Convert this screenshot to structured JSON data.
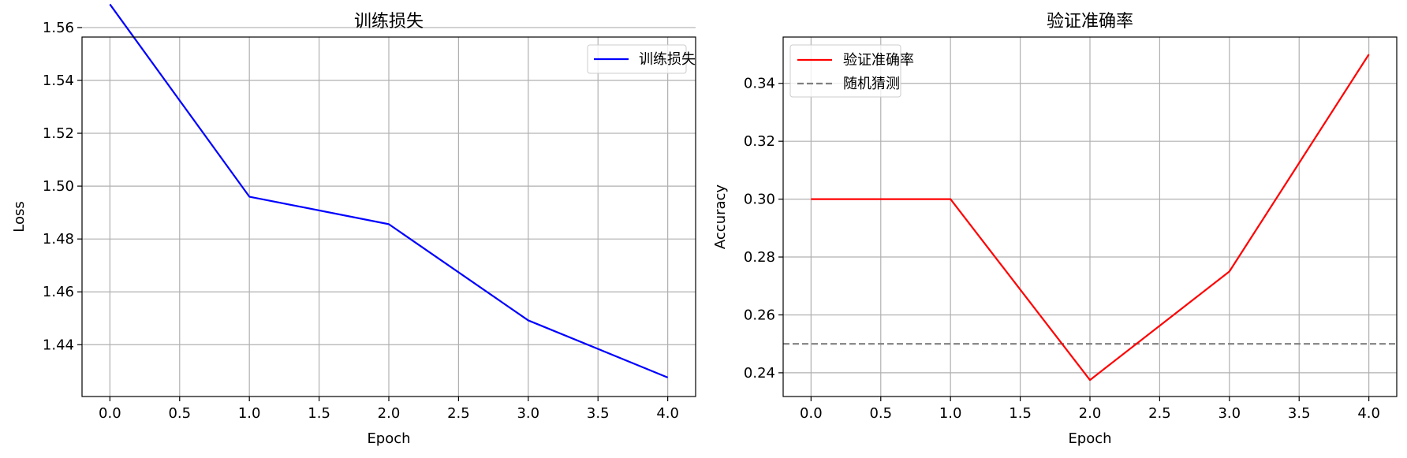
{
  "chart_data": [
    {
      "type": "line",
      "title": "训练损失",
      "xlabel": "Epoch",
      "ylabel": "Loss",
      "x": [
        0,
        1,
        2,
        3,
        4
      ],
      "xlim": [
        -0.2,
        4.2
      ],
      "ylim": [
        1.4204,
        1.5564
      ],
      "xticks": [
        0.0,
        0.5,
        1.0,
        1.5,
        2.0,
        2.5,
        3.0,
        3.5,
        4.0
      ],
      "xtick_labels": [
        "0.0",
        "0.5",
        "1.0",
        "1.5",
        "2.0",
        "2.5",
        "3.0",
        "3.5",
        "4.0"
      ],
      "yticks": [
        1.44,
        1.46,
        1.48,
        1.5,
        1.52,
        1.54,
        1.56
      ],
      "ytick_labels": [
        "1.44",
        "1.46",
        "1.48",
        "1.50",
        "1.52",
        "1.54",
        "1.56"
      ],
      "grid": true,
      "legend_position": "top-right",
      "series": [
        {
          "name": "训练损失",
          "color": "#0000ff",
          "style": "solid",
          "values": [
            1.5688,
            1.496,
            1.4856,
            1.4492,
            1.4276
          ]
        }
      ]
    },
    {
      "type": "line",
      "title": "验证准确率",
      "xlabel": "Epoch",
      "ylabel": "Accuracy",
      "x": [
        0,
        1,
        2,
        3,
        4
      ],
      "xlim": [
        -0.2,
        4.2
      ],
      "ylim": [
        0.2318,
        0.356
      ],
      "xticks": [
        0.0,
        0.5,
        1.0,
        1.5,
        2.0,
        2.5,
        3.0,
        3.5,
        4.0
      ],
      "xtick_labels": [
        "0.0",
        "0.5",
        "1.0",
        "1.5",
        "2.0",
        "2.5",
        "3.0",
        "3.5",
        "4.0"
      ],
      "yticks": [
        0.24,
        0.26,
        0.28,
        0.3,
        0.32,
        0.34
      ],
      "ytick_labels": [
        "0.24",
        "0.26",
        "0.28",
        "0.30",
        "0.32",
        "0.34"
      ],
      "grid": true,
      "legend_position": "top-left",
      "series": [
        {
          "name": "验证准确率",
          "color": "#ff0000",
          "style": "solid",
          "values": [
            0.3,
            0.3,
            0.2375,
            0.275,
            0.35
          ]
        }
      ],
      "hlines": [
        {
          "name": "随机猜测",
          "y": 0.25,
          "color": "#808080",
          "style": "dashed"
        }
      ]
    }
  ]
}
